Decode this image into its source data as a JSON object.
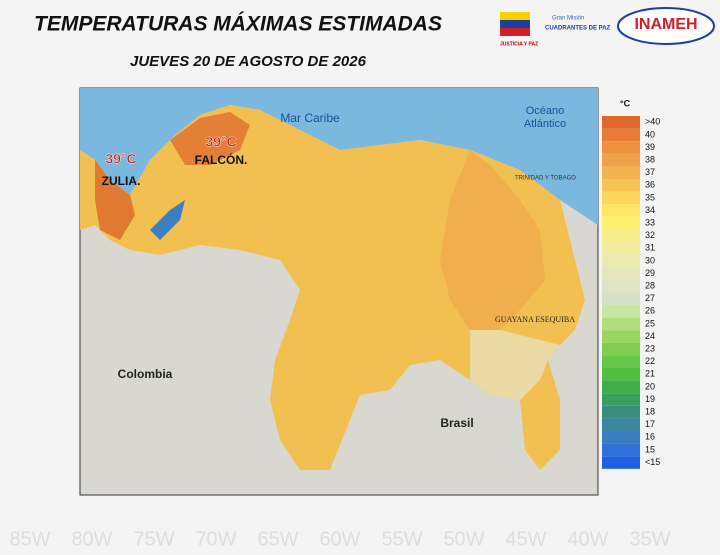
{
  "header": {
    "title": "TEMPERATURAS MÁXIMAS ESTIMADAS",
    "subtitle": "JUEVES 20 DE AGOSTO DE 2026",
    "logos": [
      "JUSTICIA Y PAZ",
      "Gran Misión",
      "CUADRANTES DE PAZ",
      "INAMEH"
    ]
  },
  "map": {
    "labels": [
      "Mar Caribe",
      "Océano",
      "Atlántico",
      "TRINIDAD Y TOBAGO",
      "GUAYANA ESEQUIBA",
      "Colombia",
      "Brasil"
    ],
    "hotspots": [
      {
        "temp": "39°C",
        "region": "ZULIA."
      },
      {
        "temp": "39°C",
        "region": "FALCÓN."
      }
    ],
    "longitudes": [
      "85W",
      "80W",
      "75W",
      "70W",
      "65W",
      "60W",
      "55W",
      "50W",
      "45W",
      "40W",
      "35W"
    ]
  },
  "legend": {
    "unit": "°C",
    "items": [
      {
        "label": ">40",
        "color": "#e0662a"
      },
      {
        "label": "40",
        "color": "#e87c36"
      },
      {
        "label": "39",
        "color": "#ed9040"
      },
      {
        "label": "38",
        "color": "#f0a249"
      },
      {
        "label": "37",
        "color": "#f3b450"
      },
      {
        "label": "36",
        "color": "#f6c556"
      },
      {
        "label": "35",
        "color": "#f9d65c"
      },
      {
        "label": "34",
        "color": "#fbe665"
      },
      {
        "label": "33",
        "color": "#fdf06e"
      },
      {
        "label": "32",
        "color": "#f8ef8a"
      },
      {
        "label": "31",
        "color": "#f2ed9f"
      },
      {
        "label": "30",
        "color": "#ebebb0"
      },
      {
        "label": "29",
        "color": "#e4e7bb"
      },
      {
        "label": "28",
        "color": "#dde3c3"
      },
      {
        "label": "27",
        "color": "#d6dfc8"
      },
      {
        "label": "26",
        "color": "#c8e6a0"
      },
      {
        "label": "25",
        "color": "#b0de78"
      },
      {
        "label": "24",
        "color": "#98d660"
      },
      {
        "label": "23",
        "color": "#80ce50"
      },
      {
        "label": "22",
        "color": "#68c648"
      },
      {
        "label": "21",
        "color": "#50be40"
      },
      {
        "label": "20",
        "color": "#40ae48"
      },
      {
        "label": "19",
        "color": "#389e60"
      },
      {
        "label": "18",
        "color": "#3a8e80"
      },
      {
        "label": "17",
        "color": "#3c86a0"
      },
      {
        "label": "16",
        "color": "#3a7ec0"
      },
      {
        "label": "15",
        "color": "#3070d8"
      },
      {
        "label": "<15",
        "color": "#2060e0"
      }
    ]
  }
}
